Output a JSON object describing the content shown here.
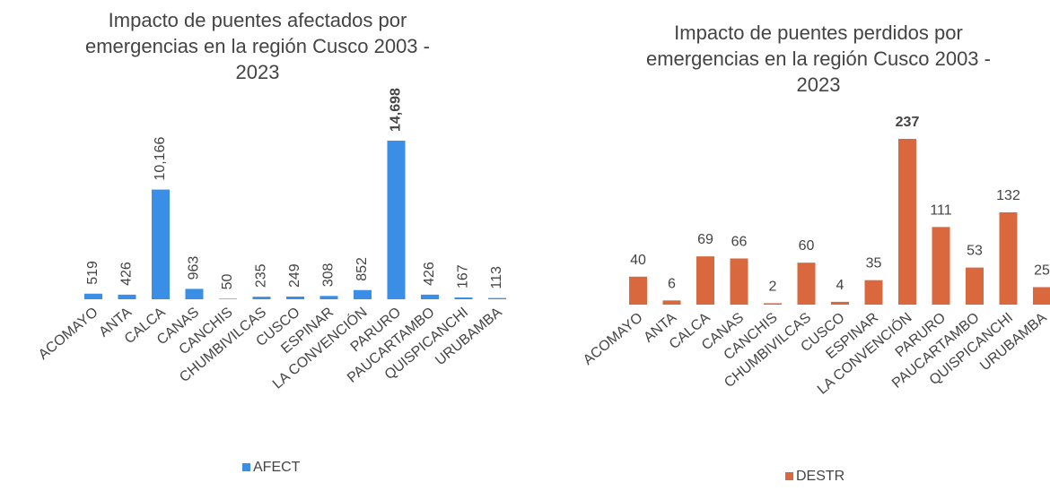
{
  "chart_data": [
    {
      "type": "bar",
      "title": "Impacto de puentes afectados por emergencias en la región Cusco 2003 - 2023",
      "categories": [
        "ACOMAYO",
        "ANTA",
        "CALCA",
        "CANAS",
        "CANCHIS",
        "CHUMBIVILCAS",
        "CUSCO",
        "ESPINAR",
        "LA CONVENCIÓN",
        "PARURO",
        "PAUCARTAMBO",
        "QUISPICANCHI",
        "URUBAMBA"
      ],
      "series": [
        {
          "name": "AFECT",
          "color": "#3a8ee6",
          "values": [
            519,
            426,
            10166,
            963,
            50,
            235,
            249,
            308,
            852,
            14698,
            426,
            167,
            113
          ],
          "value_labels": [
            "519",
            "426",
            "10,166",
            "963",
            "50",
            "235",
            "249",
            "308",
            "852",
            "14,698",
            "426",
            "167",
            "113"
          ]
        }
      ],
      "label_rotation": -90,
      "max_label_color": "#f0505a",
      "legend": "bottom"
    },
    {
      "type": "bar",
      "title": "Impacto de puentes perdidos por emergencias en la región Cusco 2003 - 2023",
      "categories": [
        "ACOMAYO",
        "ANTA",
        "CALCA",
        "CANAS",
        "CANCHIS",
        "CHUMBIVILCAS",
        "CUSCO",
        "ESPINAR",
        "LA CONVENCIÓN",
        "PARURO",
        "PAUCARTAMBO",
        "QUISPICANCHI",
        "URUBAMBA"
      ],
      "series": [
        {
          "name": "DESTR",
          "color": "#d9683f",
          "values": [
            40,
            6,
            69,
            66,
            2,
            60,
            4,
            35,
            237,
            111,
            53,
            132,
            25
          ]
        }
      ],
      "label_rotation": 0,
      "max_label_color": "#f0505a",
      "legend": "bottom"
    }
  ]
}
